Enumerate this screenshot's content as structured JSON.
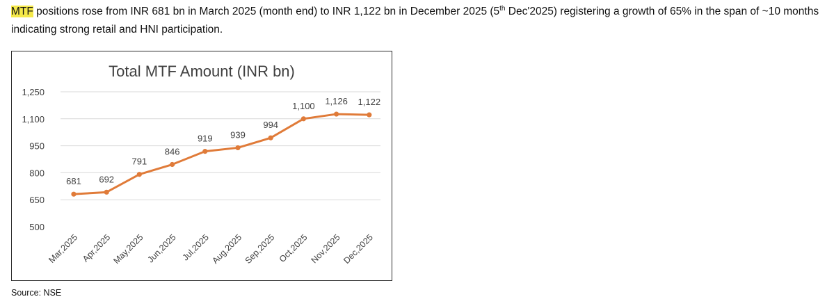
{
  "paragraph": {
    "highlight": "MTF",
    "part1": " positions rose from INR 681 bn in March 2025 (month end) to INR 1,122 bn in December 2025 (5",
    "sup": "th",
    "part2": " Dec'2025) registering a growth of 65% in the span of ~10 months indicating strong retail and HNI participation."
  },
  "source": "Source: NSE",
  "colors": {
    "line": "#e07b39",
    "grid": "#d9d9d9",
    "highlight": "#f5e94a"
  },
  "chart_data": {
    "type": "line",
    "title": "Total MTF Amount (INR bn)",
    "categories": [
      "Mar,2025",
      "Apr,2025",
      "May,2025",
      "Jun,2025",
      "Jul,2025",
      "Aug,2025",
      "Sep,2025",
      "Oct,2025",
      "Nov,2025",
      "Dec,2025"
    ],
    "values": [
      681,
      692,
      791,
      846,
      919,
      939,
      994,
      1100,
      1126,
      1122
    ],
    "value_labels": [
      "681",
      "692",
      "791",
      "846",
      "919",
      "939",
      "994",
      "1,100",
      "1,126",
      "1,122"
    ],
    "y_ticks": [
      500,
      650,
      800,
      950,
      1100,
      1250
    ],
    "y_tick_labels": [
      "500",
      "650",
      "800",
      "950",
      "1,100",
      "1,250"
    ],
    "ylim": [
      500,
      1250
    ],
    "grid": true,
    "legend": "none"
  }
}
